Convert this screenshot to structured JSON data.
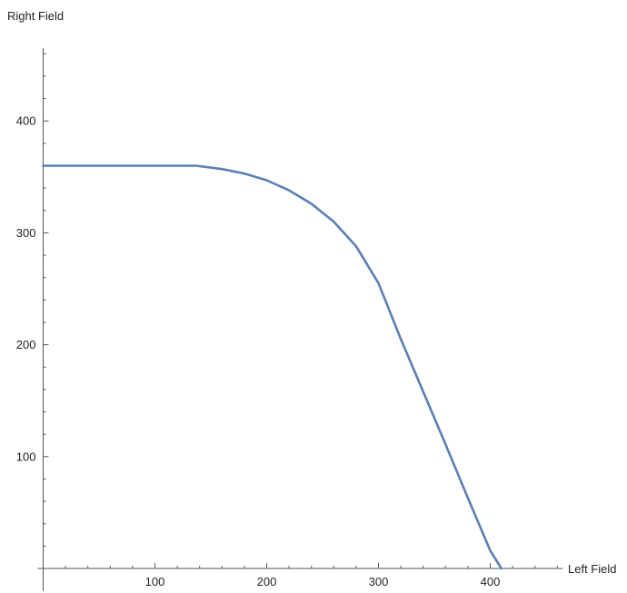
{
  "chart_data": {
    "type": "line",
    "title": "",
    "xlabel": "Left Field",
    "ylabel": "Right Field",
    "xlim": [
      -5,
      465
    ],
    "ylim": [
      -20,
      465
    ],
    "x_ticks": [
      100,
      200,
      300,
      400
    ],
    "y_ticks": [
      100,
      200,
      300,
      400
    ],
    "grid": false,
    "line_color": "#5b7fb5",
    "series": [
      {
        "x": [
          0,
          137,
          160,
          180,
          200,
          220,
          240,
          260,
          280,
          300,
          320,
          340,
          360,
          380,
          400,
          410
        ],
        "y": [
          360,
          360,
          357,
          353,
          347,
          338,
          326,
          310,
          288,
          255,
          205,
          158,
          111,
          63,
          16,
          0
        ]
      }
    ]
  }
}
